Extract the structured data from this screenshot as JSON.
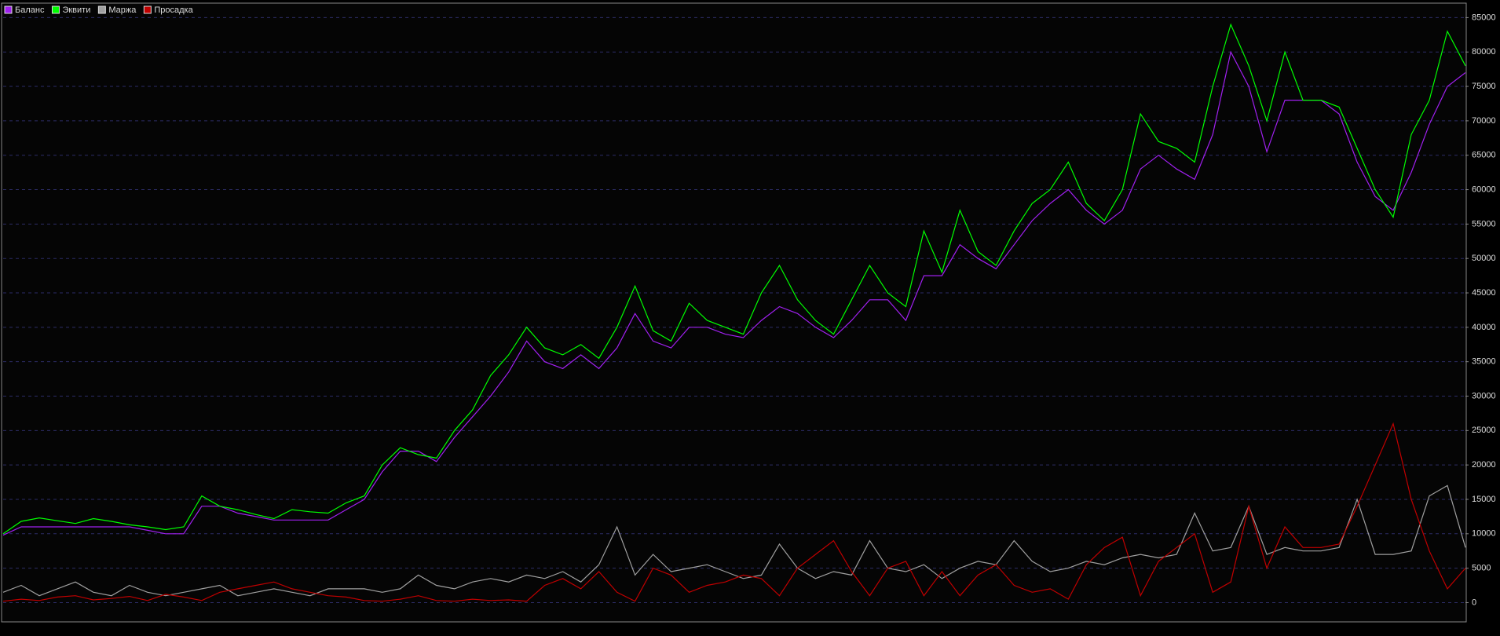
{
  "chart_data": {
    "type": "line",
    "series": [
      {
        "name": "Баланс",
        "color": "#a020f0",
        "values": [
          9800,
          11000,
          11000,
          11000,
          11000,
          11000,
          11000,
          11000,
          10500,
          10000,
          10000,
          14000,
          14000,
          13000,
          12500,
          12000,
          12000,
          12000,
          12000,
          13500,
          15000,
          19000,
          22000,
          22000,
          20500,
          24000,
          27000,
          30000,
          33500,
          38000,
          35000,
          34000,
          36000,
          34000,
          37000,
          42000,
          38000,
          37000,
          40000,
          40000,
          39000,
          38500,
          41000,
          43000,
          42000,
          40000,
          38500,
          41000,
          44000,
          44000,
          41000,
          47500,
          47500,
          52000,
          50000,
          48500,
          52000,
          55500,
          58000,
          60000,
          57000,
          55000,
          57000,
          63000,
          65000,
          63000,
          61500,
          68000,
          80000,
          75000,
          65500,
          73000,
          73000,
          73000,
          71000,
          64000,
          59000,
          57000,
          62500,
          69500,
          75000,
          77000
        ]
      },
      {
        "name": "Эквити",
        "color": "#00ff00",
        "values": [
          10000,
          11800,
          12300,
          11900,
          11500,
          12200,
          11800,
          11300,
          11000,
          10600,
          11000,
          15500,
          14000,
          13500,
          12800,
          12200,
          13500,
          13200,
          13000,
          14500,
          15500,
          20000,
          22500,
          21500,
          21000,
          25000,
          28000,
          33000,
          36000,
          40000,
          37000,
          36000,
          37500,
          35500,
          40000,
          46000,
          39500,
          38000,
          43500,
          41000,
          40000,
          39000,
          45000,
          49000,
          44000,
          41000,
          39000,
          44000,
          49000,
          45000,
          43000,
          54000,
          48000,
          57000,
          51000,
          49000,
          54000,
          58000,
          60000,
          64000,
          58000,
          55500,
          60000,
          71000,
          67000,
          66000,
          64000,
          75000,
          84000,
          78000,
          70000,
          80000,
          73000,
          73000,
          72000,
          66000,
          60000,
          56000,
          68000,
          73000,
          83000,
          78000
        ]
      },
      {
        "name": "Маржа",
        "color": "#a0a0a0",
        "values": [
          1500,
          2500,
          1000,
          2000,
          3000,
          1500,
          1000,
          2500,
          1500,
          1000,
          1500,
          2000,
          2500,
          1000,
          1500,
          2000,
          1500,
          1000,
          2000,
          2000,
          2000,
          1500,
          2000,
          4000,
          2500,
          2000,
          3000,
          3500,
          3000,
          4000,
          3500,
          4500,
          3000,
          5500,
          11000,
          4000,
          7000,
          4500,
          5000,
          5500,
          4500,
          3500,
          4000,
          8500,
          5000,
          3500,
          4500,
          4000,
          9000,
          5000,
          4500,
          5500,
          3500,
          5000,
          6000,
          5500,
          9000,
          6000,
          4500,
          5000,
          6000,
          5500,
          6500,
          7000,
          6500,
          7000,
          13000,
          7500,
          8000,
          14000,
          7000,
          8000,
          7500,
          7500,
          8000,
          15000,
          7000,
          7000,
          7500,
          15500,
          17000,
          8000
        ]
      },
      {
        "name": "Просадка",
        "color": "#c00000",
        "values": [
          200,
          500,
          300,
          800,
          1000,
          400,
          600,
          900,
          300,
          1200,
          800,
          300,
          1500,
          2000,
          2500,
          3000,
          2000,
          1500,
          1000,
          800,
          300,
          200,
          500,
          1000,
          300,
          200,
          500,
          300,
          400,
          200,
          2500,
          3500,
          2000,
          4500,
          1500,
          200,
          5000,
          4000,
          1500,
          2500,
          3000,
          4000,
          3500,
          1000,
          5000,
          7000,
          9000,
          4500,
          1000,
          5000,
          6000,
          1000,
          4500,
          1000,
          4000,
          5500,
          2500,
          1500,
          2000,
          500,
          5500,
          8000,
          9500,
          1000,
          6000,
          8000,
          10000,
          1500,
          3000,
          14000,
          5000,
          11000,
          8000,
          8000,
          8500,
          14000,
          20000,
          26000,
          15000,
          7500,
          2000,
          5000
        ]
      }
    ],
    "ylim": [
      -2800,
      87100
    ],
    "yticks": [
      0,
      5000,
      10000,
      15000,
      20000,
      25000,
      30000,
      35000,
      40000,
      45000,
      50000,
      55000,
      60000,
      65000,
      70000,
      75000,
      80000,
      85000
    ],
    "grid": true,
    "legend": "top-left"
  }
}
